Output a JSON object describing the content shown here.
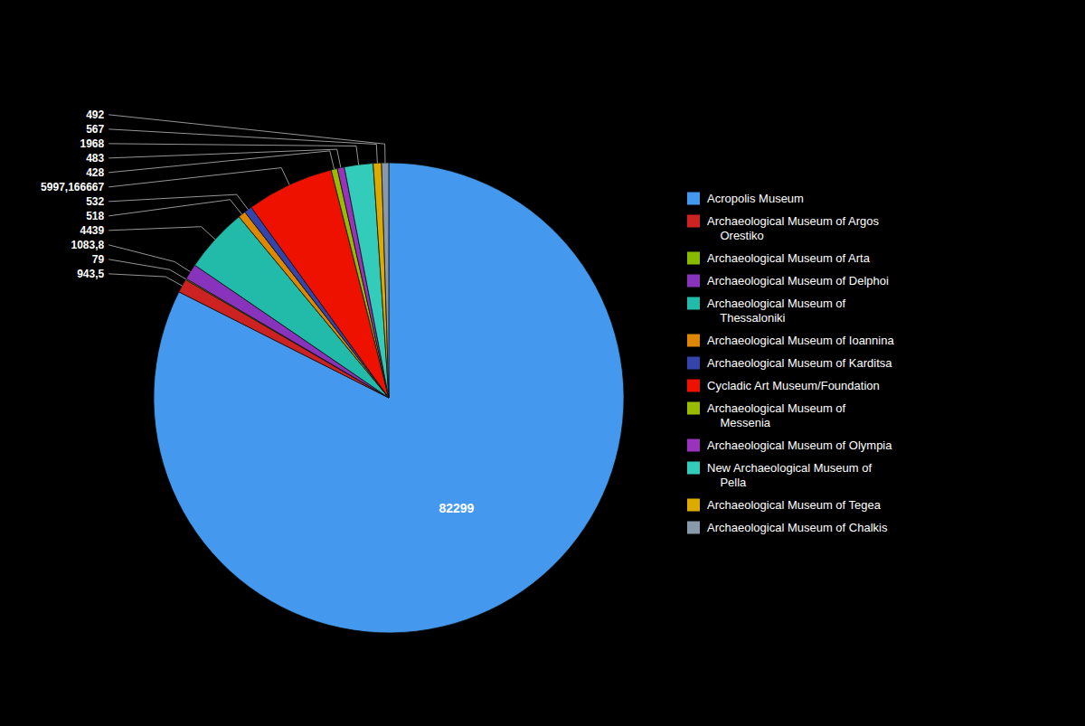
{
  "chart_data": {
    "type": "pie",
    "categories": [
      "Acropolis Museum",
      "Archaeological Museum of Argos\n    Orestiko",
      "Archaeological Museum of Arta",
      "Archaeological Museum of Delphoi",
      "Archaeological Museum of\n    Thessaloniki",
      "Archaeological Museum of Ioannina",
      "Archaeological Museum of Karditsa",
      "Cycladic Art Museum/Foundation",
      "Archaeological Museum of\n    Messenia",
      "Archaeological Museum of Olympia",
      "New Archaeological Museum of\n    Pella",
      "Archaeological Museum of Tegea",
      "Archaeological Museum of Chalkis"
    ],
    "values": [
      82299,
      943.5,
      79,
      1083.8,
      4439,
      518,
      532,
      5997.166667,
      428,
      483,
      1968,
      567,
      492
    ],
    "value_labels": [
      "82299",
      "943,5",
      "79",
      "1083,8",
      "4439",
      "518",
      "532",
      "5997,166667",
      "428",
      "483",
      "1968",
      "567",
      "492"
    ],
    "colors": [
      "#4499EE",
      "#CC2222",
      "#88BB00",
      "#8833BB",
      "#22BBAA",
      "#DD8800",
      "#3344AA",
      "#EE1100",
      "#99BB00",
      "#9933BB",
      "#33CCBB",
      "#DDAA00",
      "#8899AA"
    ],
    "data_labels": true,
    "legend": "right"
  }
}
